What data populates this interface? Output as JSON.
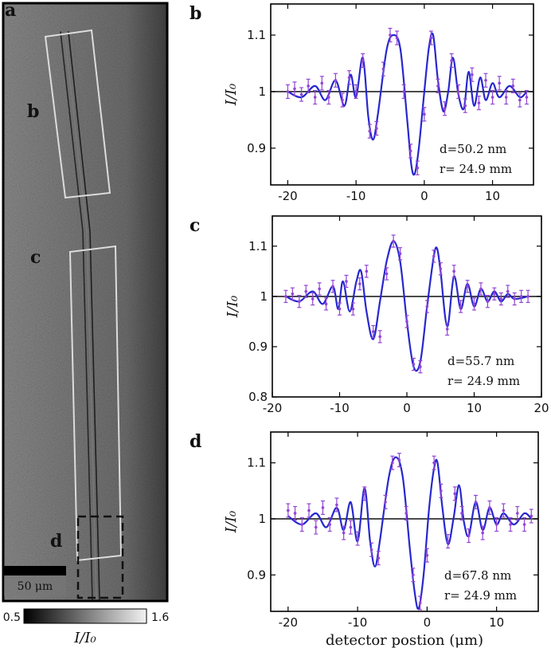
{
  "colors": {
    "fit_line": "#2727cf",
    "data_points": "#9245d6",
    "baseline": "#222222",
    "frame": "#000000",
    "roi_box": "#dcdcdc"
  },
  "image_panel": {
    "letter": "a",
    "roi_labels": [
      "b",
      "c",
      "d"
    ],
    "scale_bar_label": "50 μm",
    "colorbar": {
      "min_label": "0.5",
      "max_label": "1.6",
      "label": "I/I₀"
    }
  },
  "chart_data": [
    {
      "panel": "b",
      "type": "line",
      "ylabel": "I/I₀",
      "xlim": [
        -22.5,
        16
      ],
      "ylim": [
        0.835,
        1.155
      ],
      "xticks": [
        -20,
        -10,
        0,
        10
      ],
      "yticks": [
        0.9,
        1.0,
        1.1
      ],
      "ytick_labels": [
        "0.9",
        "1",
        "1.1"
      ],
      "baseline": 1.0,
      "annotation": [
        "d=50.2 nm",
        "r= 24.9 mm"
      ],
      "fit_x": [
        -20,
        -18,
        -16,
        -14.5,
        -13,
        -11.7,
        -10.8,
        -10,
        -9,
        -8.2,
        -7.5,
        -6.8,
        -5.5,
        -4.5,
        -3.5,
        -2.5,
        -1.9,
        -1.4,
        -0.8,
        0,
        0.7,
        1.3,
        2,
        2.8,
        3.5,
        4.2,
        5,
        5.8,
        6.5,
        7.3,
        8.2,
        9,
        10,
        11,
        12.5,
        14,
        15
      ],
      "fit_y": [
        1.0,
        0.99,
        1.01,
        0.985,
        1.02,
        0.975,
        1.03,
        0.99,
        1.06,
        0.955,
        0.915,
        0.96,
        1.075,
        1.1,
        1.075,
        0.95,
        0.87,
        0.855,
        0.9,
        1.0,
        1.08,
        1.1,
        1.02,
        0.965,
        1.0,
        1.06,
        0.995,
        0.97,
        1.035,
        0.975,
        1.025,
        0.985,
        1.015,
        0.99,
        1.01,
        0.99,
        1.0
      ],
      "data_x": [
        -20,
        -19,
        -18,
        -17,
        -16,
        -15,
        -14,
        -13,
        -12,
        -11,
        -10,
        -9,
        -8,
        -7,
        -6,
        -5,
        -4,
        -3,
        -2,
        -1,
        0,
        1,
        2,
        3,
        4,
        5,
        6,
        7,
        8,
        9,
        10,
        11,
        12,
        13,
        14,
        15
      ],
      "data_y": [
        1.0,
        1.005,
        0.995,
        1.01,
        0.99,
        1.015,
        0.99,
        1.02,
        0.985,
        1.025,
        1.0,
        1.055,
        0.93,
        0.935,
        1.04,
        1.1,
        1.095,
        1.0,
        0.895,
        0.865,
        0.96,
        1.095,
        1.01,
        0.97,
        1.055,
        1.0,
        0.975,
        1.03,
        0.98,
        1.02,
        0.99,
        1.015,
        0.99,
        1.01,
        0.985,
        0.99
      ]
    },
    {
      "panel": "c",
      "type": "line",
      "ylabel": "I/I₀",
      "xlim": [
        -20,
        20
      ],
      "ylim": [
        0.8,
        1.16
      ],
      "xticks": [
        -20,
        -10,
        0,
        10,
        20
      ],
      "yticks": [
        0.8,
        0.9,
        1.0,
        1.1
      ],
      "ytick_labels": [
        "0.8",
        "0.9",
        "1",
        "1.1"
      ],
      "baseline": 1.0,
      "annotation": [
        "d=55.7 nm",
        "r= 24.9 mm"
      ],
      "fit_x": [
        -18,
        -16,
        -14,
        -12.5,
        -11,
        -10.2,
        -9.5,
        -8.5,
        -7.5,
        -6.8,
        -6,
        -5,
        -4,
        -3,
        -2,
        -1,
        0,
        1,
        2,
        3,
        4,
        4.5,
        5,
        6,
        7,
        8,
        9,
        10,
        11,
        12,
        13,
        14,
        15,
        16,
        18
      ],
      "fit_y": [
        1.0,
        0.99,
        1.01,
        0.985,
        1.02,
        0.975,
        1.03,
        0.97,
        1.03,
        1.05,
        0.97,
        0.915,
        0.99,
        1.07,
        1.11,
        1.07,
        0.95,
        0.86,
        0.87,
        0.98,
        1.08,
        1.095,
        1.05,
        0.94,
        1.04,
        0.975,
        1.025,
        0.98,
        1.015,
        0.99,
        1.01,
        0.99,
        1.005,
        0.995,
        1.0
      ],
      "data_x": [
        -18,
        -17,
        -16,
        -15,
        -14,
        -13,
        -12,
        -11,
        -10,
        -9,
        -8,
        -7,
        -6,
        -5,
        -4,
        -3,
        -2,
        -1,
        0,
        1,
        2,
        3,
        4,
        5,
        6,
        7,
        8,
        9,
        10,
        11,
        12,
        13,
        14,
        15,
        16,
        17,
        18
      ],
      "data_y": [
        1.0,
        1.005,
        0.99,
        1.01,
        0.995,
        1.015,
        0.985,
        1.02,
        0.975,
        1.03,
        0.975,
        1.025,
        1.05,
        0.93,
        0.92,
        1.045,
        1.11,
        1.085,
        0.95,
        0.865,
        0.86,
        0.98,
        1.08,
        1.055,
        0.935,
        1.05,
        0.98,
        1.02,
        0.985,
        1.015,
        0.99,
        1.005,
        0.995,
        1.01,
        0.995,
        1.0,
        1.0
      ]
    },
    {
      "panel": "d",
      "type": "line",
      "ylabel": "I/I₀",
      "xlabel": "detector postion (μm)",
      "xlim": [
        -22.5,
        16
      ],
      "ylim": [
        0.835,
        1.155
      ],
      "xticks": [
        -20,
        -10,
        0,
        10
      ],
      "yticks": [
        0.9,
        1.0,
        1.1
      ],
      "ytick_labels": [
        "0.9",
        "1",
        "1.1"
      ],
      "baseline": 1.0,
      "annotation": [
        "d=67.8 nm",
        "r= 24.9 mm"
      ],
      "fit_x": [
        -20,
        -18,
        -16,
        -14.5,
        -13,
        -12,
        -11,
        -10,
        -9,
        -8.2,
        -7.5,
        -6.8,
        -5.5,
        -4.5,
        -3.5,
        -2.5,
        -1.8,
        -1.2,
        -0.5,
        0.3,
        1,
        1.5,
        2.2,
        3,
        3.8,
        4.6,
        5.3,
        6,
        7,
        8,
        9,
        10,
        11,
        12.5,
        14,
        15
      ],
      "fit_y": [
        1.005,
        0.99,
        1.01,
        0.985,
        1.02,
        0.98,
        1.03,
        0.96,
        1.055,
        0.96,
        0.915,
        0.96,
        1.075,
        1.11,
        1.075,
        0.95,
        0.87,
        0.84,
        0.9,
        1.02,
        1.09,
        1.1,
        1.02,
        0.955,
        1.0,
        1.06,
        0.995,
        0.97,
        1.03,
        0.98,
        1.02,
        0.99,
        1.01,
        0.99,
        1.01,
        1.0
      ],
      "data_x": [
        -20,
        -19,
        -18,
        -17,
        -16,
        -15,
        -14,
        -13,
        -12,
        -11,
        -10,
        -9,
        -8,
        -7,
        -6,
        -5,
        -4,
        -3,
        -2,
        -1,
        0,
        1,
        2,
        3,
        4,
        5,
        6,
        7,
        8,
        9,
        10,
        11,
        12,
        13,
        14,
        15
      ],
      "data_y": [
        1.015,
        1.01,
        0.99,
        1.015,
        0.985,
        1.02,
        0.99,
        1.025,
        0.975,
        0.985,
        0.965,
        1.045,
        0.945,
        0.93,
        1.03,
        1.1,
        1.105,
        1.01,
        0.9,
        0.85,
        0.935,
        1.1,
        1.05,
        0.96,
        1.045,
        1.01,
        0.97,
        1.03,
        0.975,
        1.02,
        0.99,
        1.015,
        0.99,
        1.01,
        0.99,
        1.005
      ]
    }
  ]
}
